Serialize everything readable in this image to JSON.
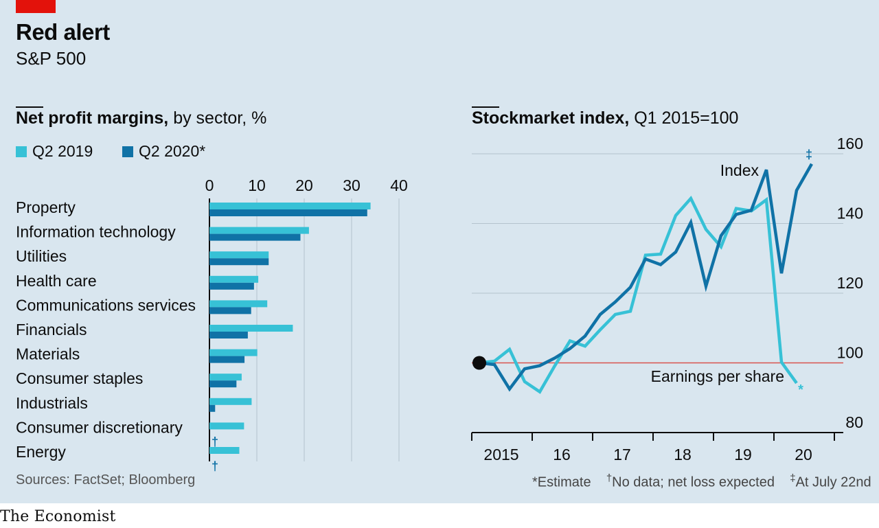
{
  "header": {
    "title": "Red alert",
    "subtitle": "S&P 500"
  },
  "left_chart_heading": {
    "bold": "Net profit margins,",
    "rest": " by sector, %"
  },
  "right_chart_heading": {
    "bold": "Stockmarket index,",
    "rest": " Q1 2015=100"
  },
  "footer": {
    "sources": "Sources: FactSet; Bloomberg",
    "brand": "The Economist",
    "note_estimate": "*Estimate",
    "note_nodata_mark": "†",
    "note_nodata": "No data; net loss expected",
    "note_date_mark": "‡",
    "note_date": "At July 22nd"
  },
  "colors": {
    "background": "#d9e6ef",
    "light_series": "#37c1d6",
    "dark_series": "#1072a6",
    "red_accent": "#e3120b",
    "baseline": "#d9534f"
  },
  "chart_data": [
    {
      "type": "bar",
      "orientation": "horizontal",
      "title": "Net profit margins, by sector, %",
      "categories": [
        "Property",
        "Information technology",
        "Utilities",
        "Health care",
        "Communications services",
        "Financials",
        "Materials",
        "Consumer staples",
        "Industrials",
        "Consumer discretionary",
        "Energy"
      ],
      "series": [
        {
          "name": "Q2 2019",
          "values": [
            34,
            21,
            12.5,
            10.3,
            12.2,
            17.6,
            10.1,
            6.8,
            8.9,
            7.3,
            6.3
          ]
        },
        {
          "name": "Q2 2020*",
          "values": [
            33.3,
            19.2,
            12.5,
            9.4,
            8.8,
            8.1,
            7.4,
            5.7,
            1.2,
            null,
            null
          ]
        }
      ],
      "annotations": {
        "no_data_marker": "†"
      },
      "xlim": [
        0,
        40
      ],
      "xticks": [
        "0",
        "10",
        "20",
        "30",
        "40"
      ],
      "grid": true,
      "legend": "top-left"
    },
    {
      "type": "line",
      "title": "Stockmarket index, Q1 2015=100",
      "x_ticks": [
        "2015",
        "16",
        "17",
        "18",
        "19",
        "20"
      ],
      "ylim": [
        80,
        160
      ],
      "yticks": [
        "80",
        "100",
        "120",
        "140",
        "160"
      ],
      "baseline": 100,
      "series": [
        {
          "name": "Index",
          "values": [
            100,
            99.5,
            92.5,
            98.3,
            99.2,
            101.4,
            104.1,
            107.7,
            113.9,
            117.5,
            121.7,
            129.8,
            128.2,
            131.8,
            140.3,
            122,
            136.5,
            142.6,
            143.8,
            155.4,
            125.7,
            149.5,
            157.1
          ],
          "end_marker": "‡"
        },
        {
          "name": "Earnings per share",
          "values": [
            100,
            100.5,
            103.9,
            94.6,
            91.7,
            99.2,
            106.3,
            104.8,
            109.5,
            113.9,
            114.8,
            130.9,
            131.2,
            142.3,
            147.2,
            138.3,
            133.3,
            144.3,
            143.6,
            146.8,
            100.2,
            94.2
          ],
          "end_marker": "*"
        }
      ],
      "grid": true,
      "legend": "inline labels"
    }
  ]
}
